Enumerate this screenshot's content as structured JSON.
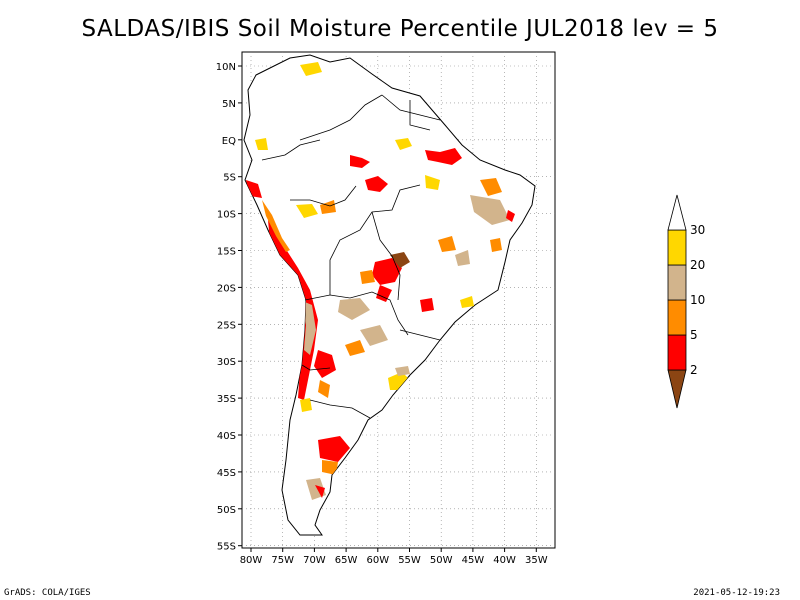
{
  "title": "SALDAS/IBIS Soil Moisture Percentile JUL2018 lev = 5",
  "footer": {
    "left": "GrADS: COLA/IGES",
    "right": "2021-05-12-19:23"
  },
  "map": {
    "lon_range": [
      -81,
      -33
    ],
    "lat_range": [
      -56,
      12
    ],
    "lat_ticks": [
      "10N",
      "5N",
      "EQ",
      "5S",
      "10S",
      "15S",
      "20S",
      "25S",
      "30S",
      "35S",
      "40S",
      "45S",
      "50S",
      "55S"
    ],
    "lon_ticks": [
      "80W",
      "75W",
      "70W",
      "65W",
      "60W",
      "55W",
      "50W",
      "45W",
      "40W",
      "35W"
    ],
    "grid_lines": "dotted"
  },
  "legend": {
    "labels": [
      "2",
      "5",
      "10",
      "20",
      "30"
    ],
    "colors": [
      "#8b4513",
      "#ff0000",
      "#ff8c00",
      "#d2b48c",
      "#ffd700",
      "#ffffff"
    ],
    "color_names": [
      "brown",
      "red",
      "orange",
      "tan",
      "gold",
      "white"
    ]
  }
}
